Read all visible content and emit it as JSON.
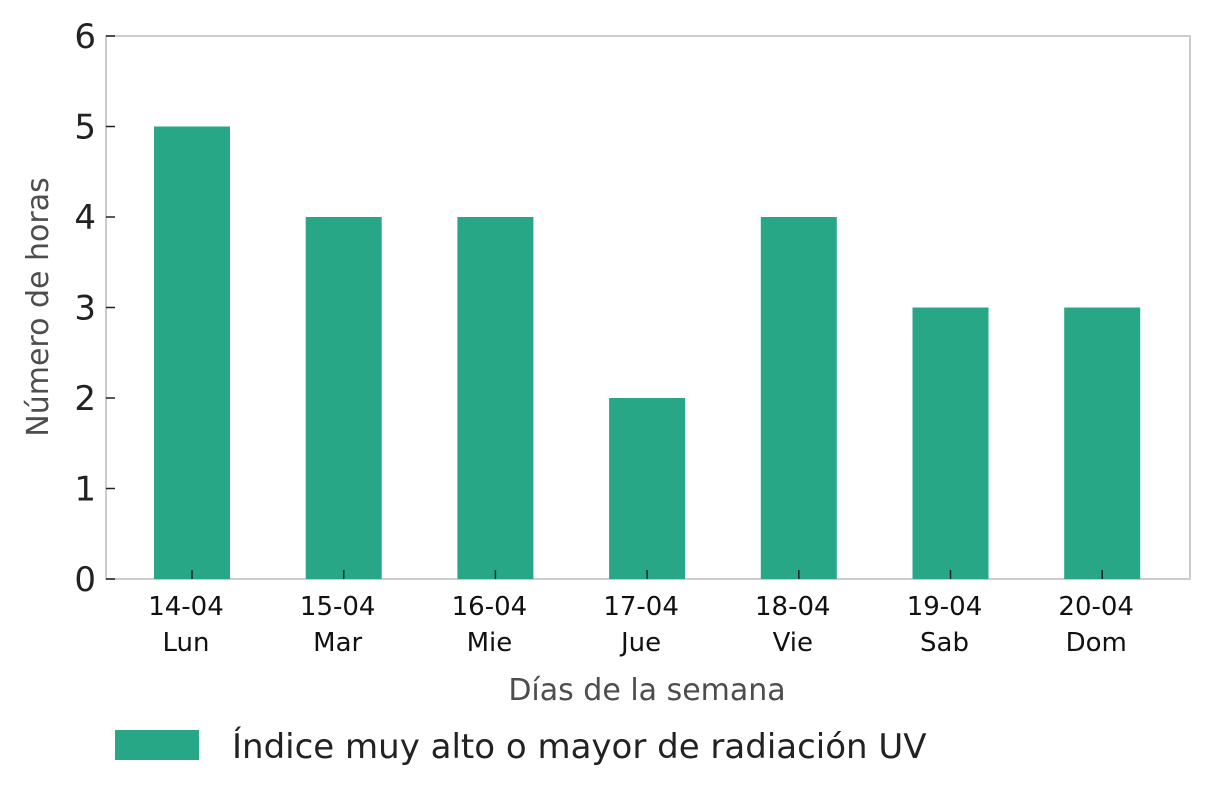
{
  "chart_data": {
    "type": "bar",
    "categories": [
      {
        "date": "14-04",
        "day": "Lun"
      },
      {
        "date": "15-04",
        "day": "Mar"
      },
      {
        "date": "16-04",
        "day": "Mie"
      },
      {
        "date": "17-04",
        "day": "Jue"
      },
      {
        "date": "18-04",
        "day": "Vie"
      },
      {
        "date": "19-04",
        "day": "Sab"
      },
      {
        "date": "20-04",
        "day": "Dom"
      }
    ],
    "series": [
      {
        "name": "Índice muy alto o mayor de radiación UV",
        "values": [
          5,
          4,
          4,
          2,
          4,
          3,
          3
        ],
        "color": "#28a787"
      }
    ],
    "xlabel": "Días de la semana",
    "ylabel": "Número de horas",
    "ylim": [
      0,
      6
    ],
    "yticks": [
      0,
      1,
      2,
      3,
      4,
      5,
      6
    ],
    "grid": false,
    "legend_position": "bottom-left"
  }
}
